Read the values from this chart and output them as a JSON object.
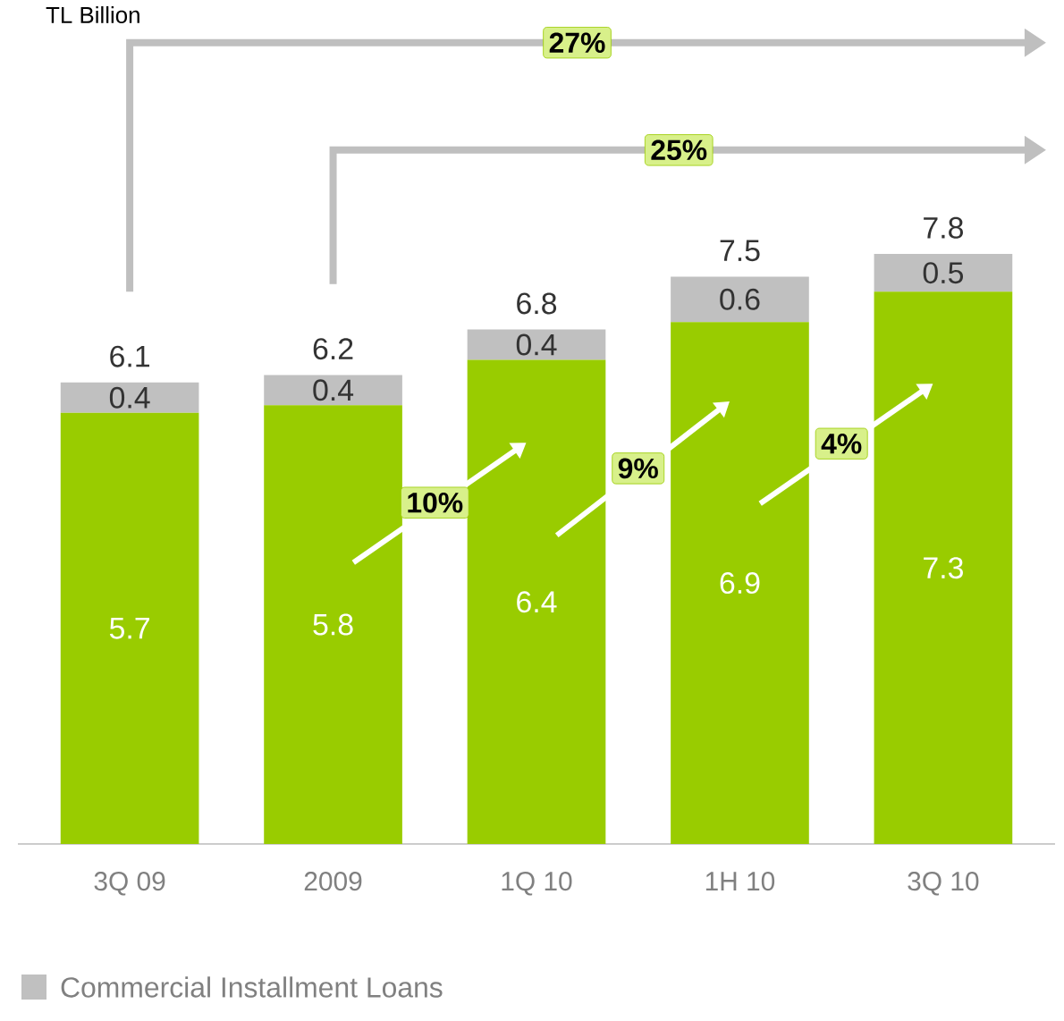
{
  "chart_data": {
    "type": "bar",
    "stacked": true,
    "categories": [
      "3Q 09",
      "2009",
      "1Q 10",
      "1H 10",
      "3Q 10"
    ],
    "series": [
      {
        "color": "#99cc00",
        "values": [
          5.7,
          5.8,
          6.4,
          6.9,
          7.3
        ]
      },
      {
        "name": "Commercial Installment Loans",
        "color": "#c0c0c0",
        "values": [
          0.4,
          0.4,
          0.4,
          0.6,
          0.5
        ]
      }
    ],
    "totals": [
      "6.1",
      "6.2",
      "6.8",
      "7.5",
      "7.8"
    ],
    "data_labels": true,
    "legend": "bottom left",
    "annotations": [
      "27%",
      "25%",
      "10%",
      "9%",
      "4%",
      "TL Billion"
    ]
  }
}
